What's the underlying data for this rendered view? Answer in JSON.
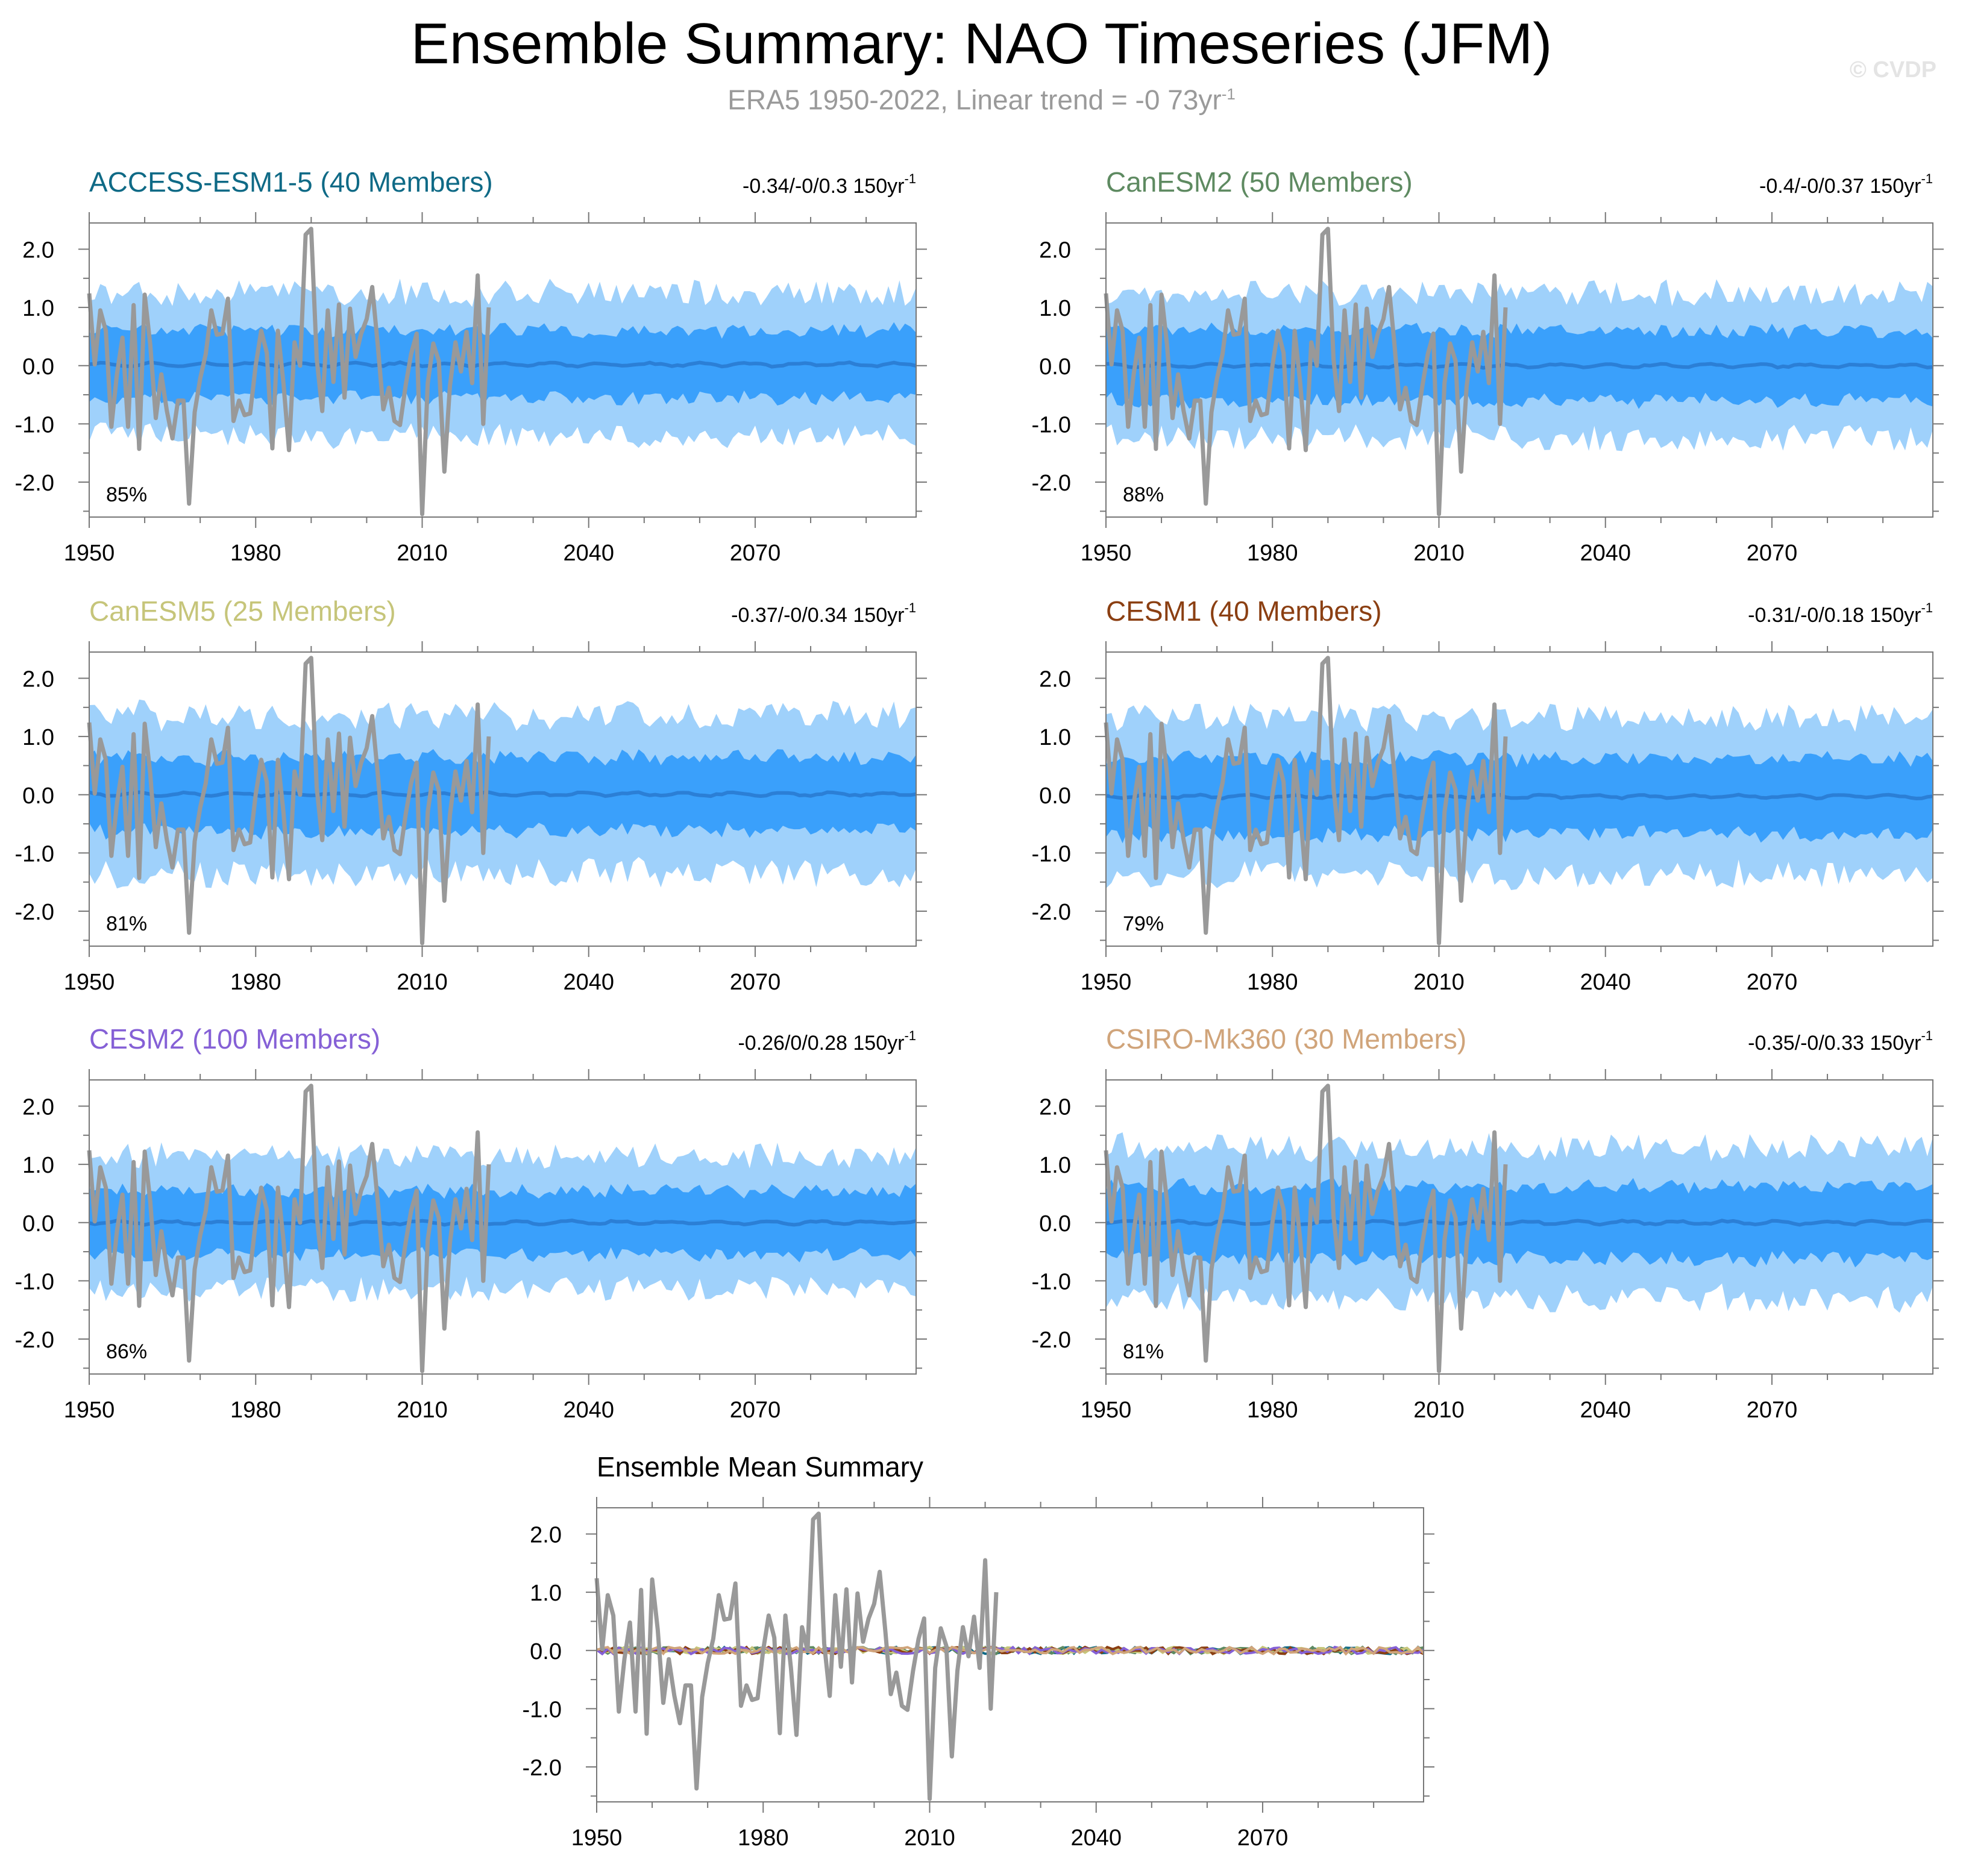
{
  "title": "Ensemble Summary: NAO Timeseries (JFM)",
  "subtitle": {
    "text": "ERA5 1950-2022, Linear trend = -0 73yr",
    "exponent": "-1"
  },
  "watermark": "© CVDP",
  "colors": {
    "band_outer": "#9fd1fb",
    "band_inner": "#3aa0fb",
    "ensemble_mean_line": "#2b7fd6",
    "observations": "#999999",
    "axis": "#777777"
  },
  "axis": {
    "x_ticks": [
      1950,
      1980,
      2010,
      2040,
      2070
    ],
    "x_range": [
      1950,
      2099
    ],
    "y_ticks": [
      "2.0",
      "1.0",
      "0.0",
      "-1.0",
      "-2.0"
    ],
    "y_range": [
      -2.6,
      2.45
    ]
  },
  "chart_data": {
    "type": "line",
    "observations": {
      "name": "ERA5",
      "x_start": 1950,
      "values": [
        1.24,
        0.02,
        0.95,
        0.6,
        -1.05,
        -0.15,
        0.48,
        -1.05,
        1.04,
        -1.43,
        1.22,
        0.36,
        -0.9,
        -0.15,
        -0.78,
        -1.25,
        -0.6,
        -0.6,
        -2.37,
        -0.8,
        -0.22,
        0.2,
        0.95,
        0.53,
        0.55,
        1.15,
        -0.95,
        -0.6,
        -0.85,
        -0.82,
        0.0,
        0.6,
        0.22,
        -1.42,
        0.6,
        -0.3,
        -1.45,
        0.4,
        0.0,
        2.25,
        2.35,
        0.12,
        -0.78,
        0.95,
        -0.28,
        1.05,
        -0.55,
        0.98,
        0.15,
        0.55,
        0.8,
        1.35,
        0.35,
        -0.75,
        -0.38,
        -0.95,
        -1.02,
        -0.35,
        0.2,
        0.55,
        -2.55,
        -0.3,
        0.38,
        0.08,
        -1.82,
        -0.35,
        0.4,
        -0.1,
        0.58,
        -0.3,
        1.55,
        -1.0,
        1.0
      ]
    },
    "panels": [
      {
        "model": "ACCESS-ESM1-5",
        "label": "ACCESS-ESM1-5 (40 Members)",
        "color": "#0f6a86",
        "trend": "-0.34/-0/0.3 150yr",
        "trend_exp": "-1",
        "pct": "85%",
        "outer_half": 1.22,
        "inner_half": 0.58,
        "mean_shift": 0.02,
        "hist_end": 2014
      },
      {
        "model": "CanESM2",
        "label": "CanESM2 (50 Members)",
        "color": "#5e8a61",
        "trend": "-0.4/-0/0.37 150yr",
        "trend_exp": "-1",
        "pct": "88%",
        "outer_half": 1.25,
        "inner_half": 0.6,
        "mean_shift": 0.0,
        "hist_end": 2022
      },
      {
        "model": "CanESM5",
        "label": "CanESM5 (25 Members)",
        "color": "#c6c57a",
        "trend": "-0.37/-0/0.34 150yr",
        "trend_exp": "-1",
        "pct": "81%",
        "outer_half": 1.35,
        "inner_half": 0.63,
        "mean_shift": 0.01,
        "hist_end": 2014
      },
      {
        "model": "CESM1",
        "label": "CESM1 (40 Members)",
        "color": "#8b3f12",
        "trend": "-0.31/-0/0.18 150yr",
        "trend_exp": "-1",
        "pct": "79%",
        "outer_half": 1.35,
        "inner_half": 0.65,
        "mean_shift": -0.03,
        "hist_end": 2022
      },
      {
        "model": "CESM2",
        "label": "CESM2 (100 Members)",
        "color": "#8560d6",
        "trend": "-0.26/0/0.28 150yr",
        "trend_exp": "-1",
        "pct": "86%",
        "outer_half": 1.15,
        "inner_half": 0.55,
        "mean_shift": 0.0,
        "hist_end": 2014
      },
      {
        "model": "CSIRO-Mk360",
        "label": "CSIRO-Mk360 (30 Members)",
        "color": "#d0a47a",
        "trend": "-0.35/-0/0.33 150yr",
        "trend_exp": "-1",
        "pct": "81%",
        "outer_half": 1.3,
        "inner_half": 0.62,
        "mean_shift": 0.0,
        "hist_end": 2022
      }
    ],
    "ensemble_mean_summary": {
      "title": "Ensemble Mean Summary",
      "series_colors": [
        "#0f6a86",
        "#5e8a61",
        "#c6c57a",
        "#8b3f12",
        "#8560d6",
        "#d0a47a"
      ]
    }
  }
}
